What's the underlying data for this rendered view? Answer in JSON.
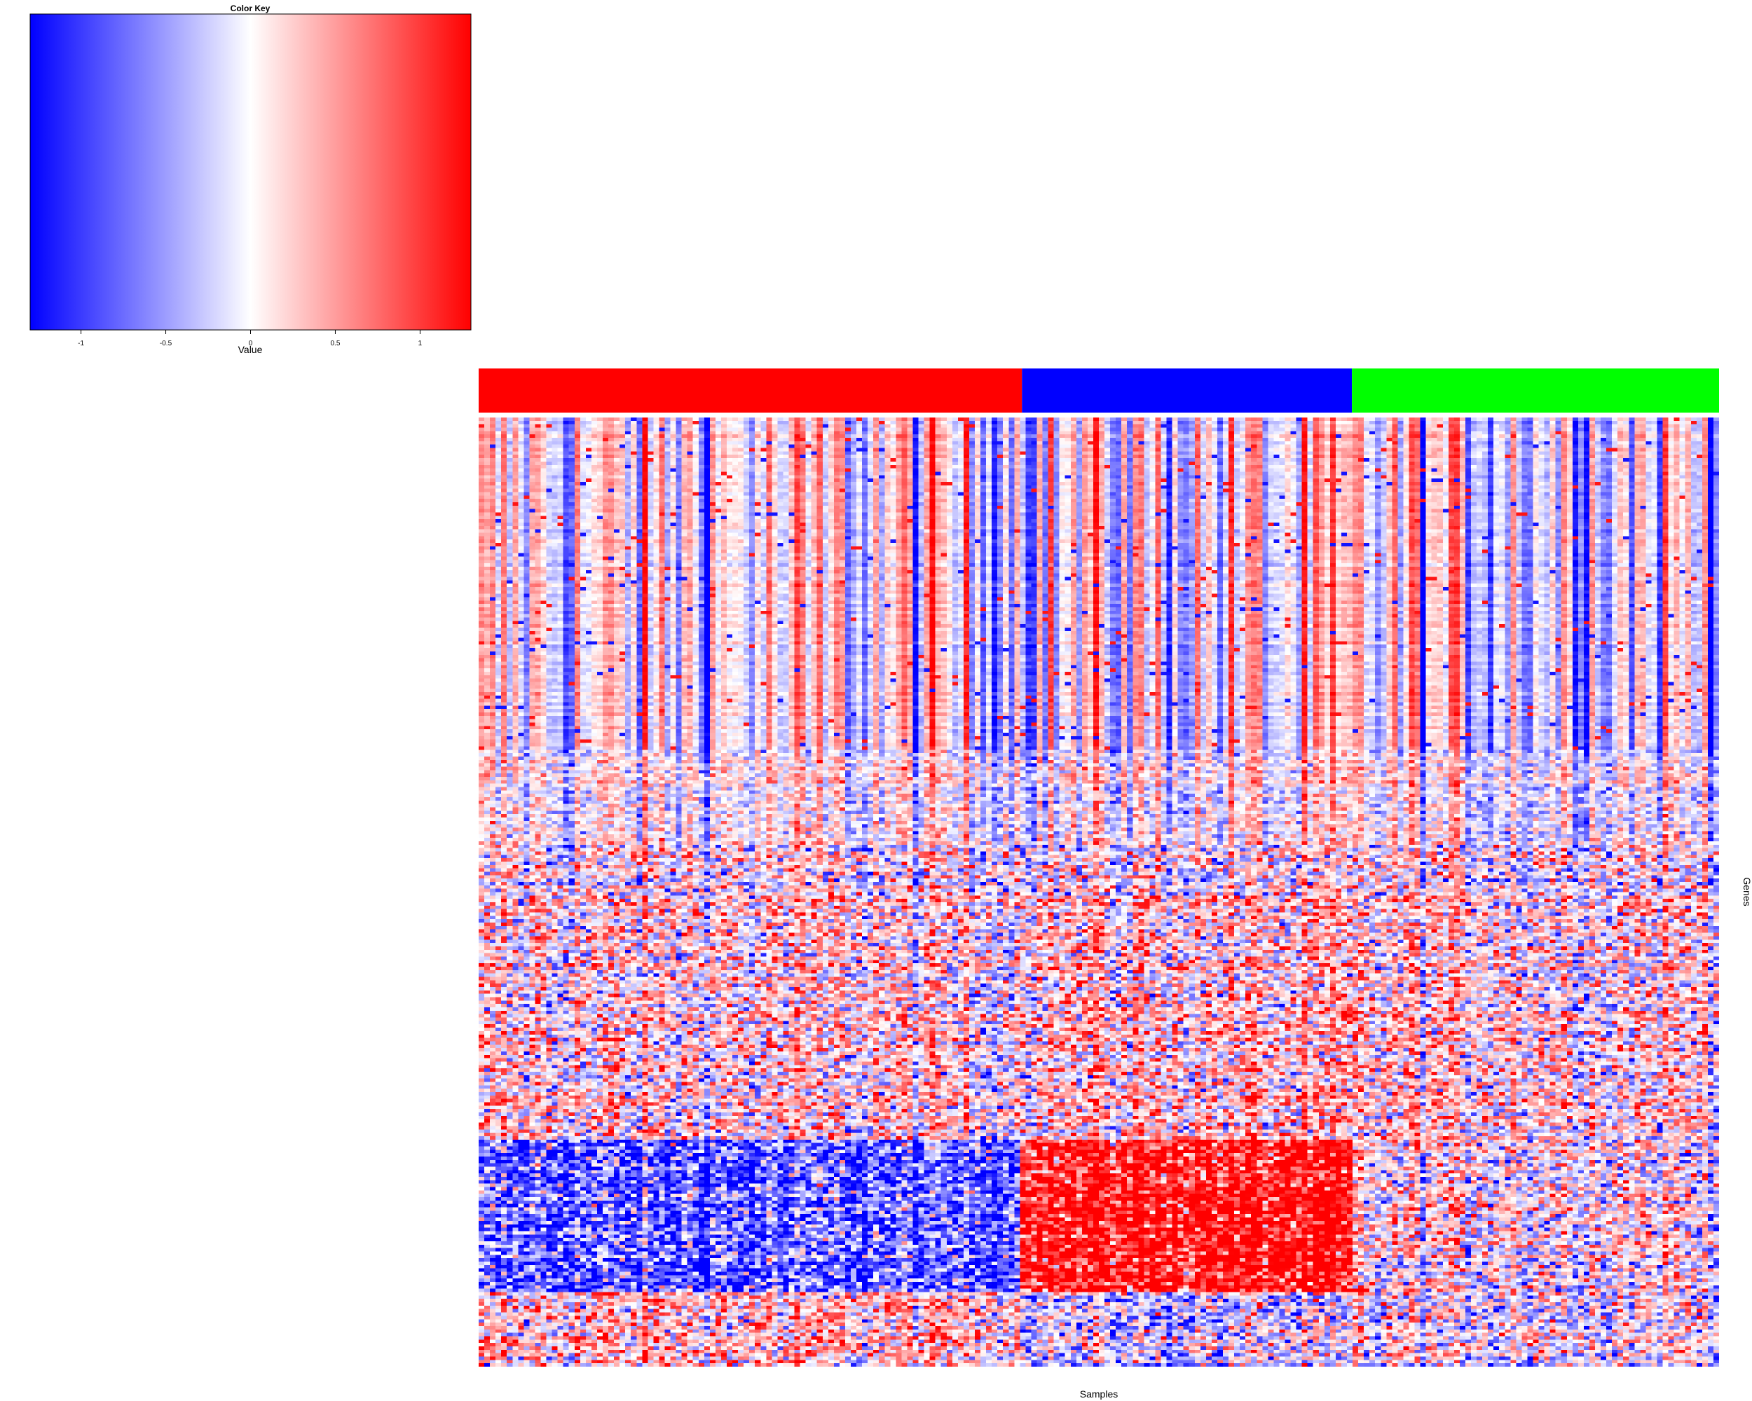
{
  "chart_data": {
    "type": "heatmap",
    "color_key": {
      "title": "Color Key",
      "xlabel": "Value",
      "range": [
        -1.3,
        1.3
      ],
      "ticks": [
        {
          "value": -1,
          "label": "-1"
        },
        {
          "value": -0.5,
          "label": "-0.5"
        },
        {
          "value": 0,
          "label": "0"
        },
        {
          "value": 0.5,
          "label": "0.5"
        },
        {
          "value": 1,
          "label": "1"
        }
      ],
      "colors": {
        "low": "#0000ff",
        "mid": "#ffffff",
        "high": "#ff0000"
      }
    },
    "xlabel": "Samples",
    "ylabel": "Genes",
    "column_groups": [
      {
        "color": "#ff0000",
        "fraction": 0.438
      },
      {
        "color": "#0000ff",
        "fraction": 0.266
      },
      {
        "color": "#00ff00",
        "fraction": 0.296
      }
    ],
    "matrix": {
      "columns": 220,
      "rows": 280,
      "value_range": [
        -1.3,
        1.3
      ]
    },
    "grid": false,
    "legend": "top-left"
  }
}
